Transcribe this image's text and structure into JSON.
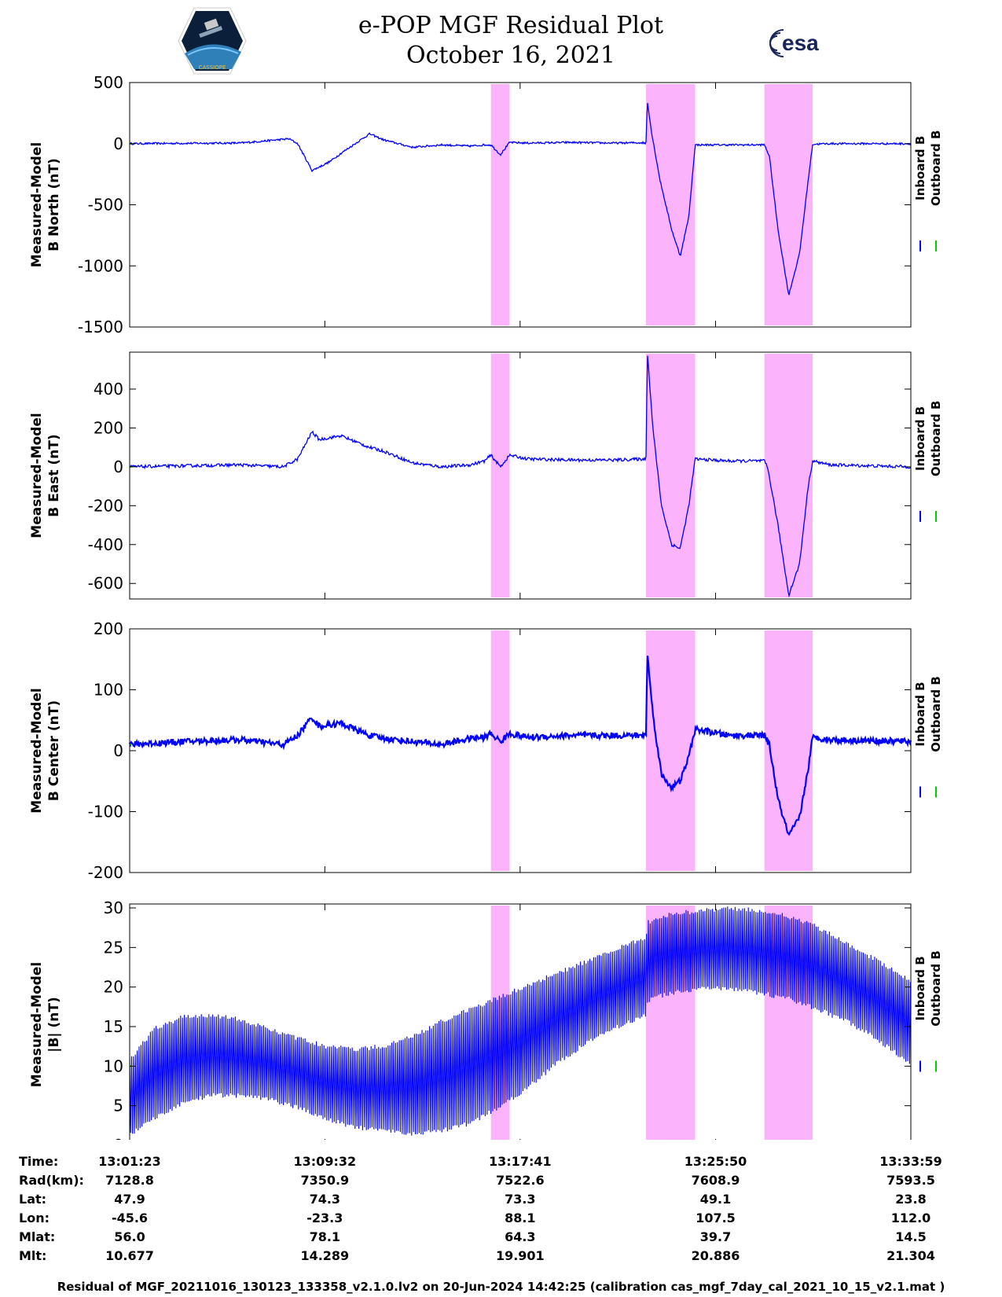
{
  "header": {
    "title_line1": "e-POP MGF Residual Plot",
    "title_line2": "October 16, 2021",
    "logo_left_text": "CASSIOPE",
    "logo_right_text": "esa"
  },
  "colors": {
    "inboard": "#0000ff",
    "outboard": "#00cc00",
    "highlight": "#fbb4fb"
  },
  "chart_data": [
    {
      "type": "line",
      "ylabel": [
        "Measured-Model",
        "B North (nT)"
      ],
      "ylim": [
        -1500,
        500
      ],
      "yticks": [
        500,
        0,
        -500,
        -1000,
        -1500
      ],
      "ytick_labels": [
        "500",
        "0",
        "-500",
        "-1000",
        "-1500"
      ],
      "legend": [
        "Inboard B",
        "Outboard B"
      ],
      "highlight_spans": [
        [
          13.2744,
          13.2874
        ],
        [
          13.3822,
          13.4164
        ],
        [
          13.4646,
          13.4981
        ]
      ],
      "series": [
        {
          "name": "Inboard B",
          "x": [
            13.0232,
            13.06,
            13.1,
            13.125,
            13.134,
            13.14,
            13.15,
            13.162,
            13.17,
            13.18,
            13.19,
            13.2,
            13.22,
            13.24,
            13.26,
            13.27,
            13.2744,
            13.281,
            13.2874,
            13.3,
            13.33,
            13.36,
            13.38,
            13.3822,
            13.3832,
            13.386,
            13.392,
            13.4,
            13.406,
            13.412,
            13.4164,
            13.44,
            13.4646,
            13.468,
            13.474,
            13.4815,
            13.489,
            13.495,
            13.4981,
            13.51,
            13.5664
          ],
          "y": [
            0,
            3,
            5,
            30,
            40,
            0,
            -220,
            -150,
            -80,
            0,
            80,
            30,
            -30,
            -10,
            -20,
            -10,
            -10,
            -90,
            10,
            5,
            10,
            5,
            8,
            0,
            350,
            100,
            -300,
            -700,
            -920,
            -600,
            -10,
            -10,
            -10,
            -100,
            -700,
            -1240,
            -900,
            -300,
            -5,
            0,
            0
          ],
          "noise": 8
        },
        {
          "name": "Outboard B",
          "x": [
            13.0232,
            13.0245
          ],
          "y": [
            0,
            0
          ],
          "noise": 0
        }
      ]
    },
    {
      "type": "line",
      "ylabel": [
        "Measured-Model",
        "B East (nT)"
      ],
      "ylim": [
        -680,
        590
      ],
      "yticks": [
        400,
        200,
        0,
        -200,
        -400,
        -600
      ],
      "ytick_labels": [
        "400",
        "200",
        "0",
        "-200",
        "-400",
        "-600"
      ],
      "legend": [
        "Inboard B",
        "Outboard B"
      ],
      "highlight_spans": [
        [
          13.2744,
          13.2874
        ],
        [
          13.3822,
          13.4164
        ],
        [
          13.4646,
          13.4981
        ]
      ],
      "series": [
        {
          "name": "Inboard B",
          "x": [
            13.0232,
            13.06,
            13.1,
            13.13,
            13.14,
            13.15,
            13.155,
            13.17,
            13.19,
            13.2,
            13.22,
            13.24,
            13.26,
            13.27,
            13.2744,
            13.281,
            13.2874,
            13.3,
            13.33,
            13.36,
            13.38,
            13.3822,
            13.3832,
            13.387,
            13.393,
            13.4,
            13.406,
            13.412,
            13.4164,
            13.44,
            13.4646,
            13.467,
            13.474,
            13.4815,
            13.489,
            13.495,
            13.4981,
            13.51,
            13.5664
          ],
          "y": [
            0,
            5,
            10,
            0,
            40,
            180,
            140,
            160,
            100,
            80,
            20,
            0,
            10,
            30,
            60,
            0,
            60,
            40,
            35,
            35,
            40,
            40,
            590,
            200,
            -200,
            -400,
            -420,
            -200,
            40,
            30,
            30,
            -10,
            -300,
            -660,
            -500,
            -100,
            30,
            10,
            0
          ],
          "noise": 8
        },
        {
          "name": "Outboard B",
          "x": [
            13.0232,
            13.0245
          ],
          "y": [
            0,
            0
          ],
          "noise": 0
        }
      ]
    },
    {
      "type": "line",
      "ylabel": [
        "Measured-Model",
        "B Center (nT)"
      ],
      "ylim": [
        -200,
        200
      ],
      "yticks": [
        200,
        100,
        0,
        -100,
        -200
      ],
      "ytick_labels": [
        "200",
        "100",
        "0",
        "-100",
        "-200"
      ],
      "legend": [
        "Inboard B",
        "Outboard B"
      ],
      "highlight_spans": [
        [
          13.2744,
          13.2874
        ],
        [
          13.3822,
          13.4164
        ],
        [
          13.4646,
          13.4981
        ]
      ],
      "series": [
        {
          "name": "Inboard B",
          "x": [
            13.0232,
            13.06,
            13.1,
            13.13,
            13.14,
            13.15,
            13.155,
            13.17,
            13.19,
            13.2,
            13.22,
            13.24,
            13.26,
            13.27,
            13.2744,
            13.281,
            13.2874,
            13.3,
            13.33,
            13.36,
            13.38,
            13.3822,
            13.3832,
            13.387,
            13.393,
            13.4,
            13.406,
            13.412,
            13.4164,
            13.44,
            13.4646,
            13.468,
            13.474,
            13.4815,
            13.489,
            13.495,
            13.4981,
            13.51,
            13.5664
          ],
          "y": [
            10,
            15,
            18,
            10,
            25,
            55,
            40,
            45,
            25,
            20,
            15,
            10,
            20,
            22,
            28,
            15,
            28,
            22,
            25,
            25,
            25,
            25,
            160,
            60,
            -40,
            -60,
            -50,
            -10,
            35,
            25,
            25,
            10,
            -80,
            -140,
            -110,
            -30,
            22,
            18,
            15
          ],
          "noise": 5
        },
        {
          "name": "Outboard B",
          "x": [
            13.0232,
            13.0245
          ],
          "y": [
            10,
            10
          ],
          "noise": 0
        }
      ]
    },
    {
      "type": "area",
      "ylabel": [
        "Measured-Model",
        "|B| (nT)"
      ],
      "ylim": [
        0,
        30.5
      ],
      "yticks": [
        30,
        25,
        20,
        15,
        10,
        5,
        0
      ],
      "ytick_labels": [
        "30",
        "25",
        "20",
        "15",
        "10",
        "5",
        "0"
      ],
      "legend": [
        "Inboard B",
        "Outboard B"
      ],
      "highlight_spans": [
        [
          13.2744,
          13.2874
        ],
        [
          13.3822,
          13.4164
        ],
        [
          13.4646,
          13.4981
        ]
      ],
      "series": [
        {
          "name": "Inboard B",
          "x": [
            13.0232,
            13.04,
            13.06,
            13.08,
            13.1,
            13.12,
            13.14,
            13.16,
            13.18,
            13.2,
            13.22,
            13.24,
            13.26,
            13.28,
            13.3,
            13.32,
            13.34,
            13.36,
            13.38,
            13.3822,
            13.3832,
            13.4,
            13.42,
            13.44,
            13.46,
            13.48,
            13.5,
            13.52,
            13.54,
            13.5664
          ],
          "upper": [
            11,
            15,
            16.5,
            16.8,
            16.2,
            15,
            13.8,
            12.8,
            12.5,
            12.8,
            14,
            16,
            17.5,
            19,
            20.5,
            22,
            23.5,
            25,
            26.5,
            26.5,
            28.5,
            29.5,
            30,
            30.3,
            30,
            29.3,
            28,
            26,
            24,
            21
          ],
          "lower": [
            1,
            3,
            5,
            6,
            6,
            5.5,
            4.5,
            3,
            2,
            1.5,
            1.2,
            1.5,
            2.5,
            4.5,
            7,
            10,
            12.5,
            14.5,
            16,
            16,
            18,
            19,
            19.5,
            19.5,
            19,
            18.3,
            17,
            15.5,
            13.5,
            10
          ]
        },
        {
          "name": "Outboard B",
          "x": [
            13.0232,
            13.0245
          ],
          "upper": [
            10,
            10
          ],
          "lower": [
            10,
            10
          ]
        }
      ]
    }
  ],
  "x_axis": {
    "xlim": [
      13.0232,
      13.5664
    ],
    "ticks": [
      13.0232,
      13.1589,
      13.2947,
      13.4306,
      13.5664
    ]
  },
  "ephemeris": {
    "row_labels": [
      "Time:",
      "Rad(km):",
      "Lat:",
      "Lon:",
      "Mlat:",
      "Mlt:"
    ],
    "columns": [
      [
        "13:01:23",
        "7128.8",
        "47.9",
        "-45.6",
        "56.0",
        "10.677"
      ],
      [
        "13:09:32",
        "7350.9",
        "74.3",
        "-23.3",
        "78.1",
        "14.289"
      ],
      [
        "13:17:41",
        "7522.6",
        "73.3",
        "88.1",
        "64.3",
        "19.901"
      ],
      [
        "13:25:50",
        "7608.9",
        "49.1",
        "107.5",
        "39.7",
        "20.886"
      ],
      [
        "13:33:59",
        "7593.5",
        "23.8",
        "112.0",
        "14.5",
        "21.304"
      ]
    ]
  },
  "footer": {
    "note": "Residual of MGF_20211016_130123_133358_v2.1.0.lv2 on 20-Jun-2024 14:42:25 (calibration cas_mgf_7day_cal_2021_10_15_v2.1.mat )"
  }
}
